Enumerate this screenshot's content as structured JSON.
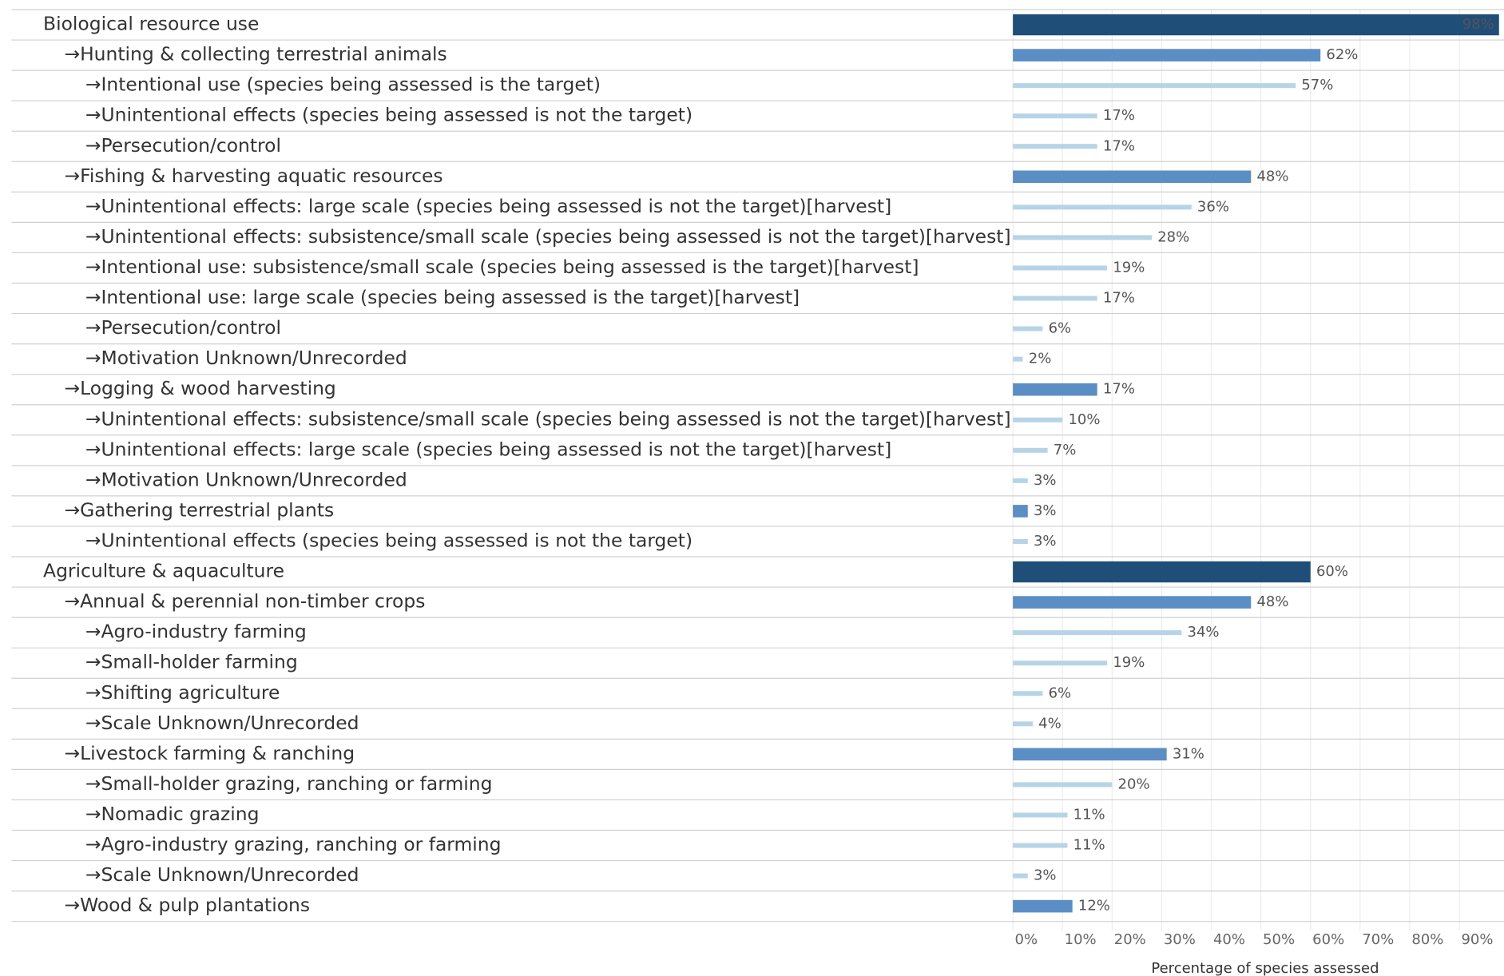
{
  "chart_data": {
    "type": "bar",
    "orientation": "horizontal",
    "x_label": "Percentage of species assessed",
    "categories": [
      "Biological resource use",
      "→Hunting & collecting terrestrial animals",
      "→Intentional use (species being assessed is the target)",
      "→Unintentional effects (species being assessed is not the target)",
      "→Persecution/control",
      "→Fishing & harvesting aquatic resources",
      "→Unintentional effects: large scale (species being assessed is not the target)[harvest]",
      "→Unintentional effects: subsistence/small scale (species being assessed is not the target)[harvest]",
      "→Intentional use: subsistence/small scale (species being assessed is the target)[harvest]",
      "→Intentional use: large scale (species being assessed is the target)[harvest]",
      "→Persecution/control",
      "→Motivation Unknown/Unrecorded",
      "→Logging & wood harvesting",
      "→Unintentional effects: subsistence/small scale (species being assessed is not the target)[harvest]",
      "→Unintentional effects: large scale (species being assessed is not the target)[harvest]",
      "→Motivation Unknown/Unrecorded",
      "→Gathering terrestrial plants",
      "→Unintentional effects (species being assessed is not the target)",
      "Agriculture & aquaculture",
      "→Annual & perennial non-timber crops",
      "→Agro-industry farming",
      "→Small-holder farming",
      "→Shifting agriculture",
      "→Scale Unknown/Unrecorded",
      "→Livestock farming & ranching",
      "→Small-holder grazing, ranching or farming",
      "→Nomadic grazing",
      "→Agro-industry grazing, ranching or farming",
      "→Scale Unknown/Unrecorded",
      "→Wood & pulp plantations"
    ],
    "levels": [
      0,
      1,
      2,
      2,
      2,
      1,
      2,
      2,
      2,
      2,
      2,
      2,
      1,
      2,
      2,
      2,
      1,
      2,
      0,
      1,
      2,
      2,
      2,
      2,
      1,
      2,
      2,
      2,
      2,
      1
    ],
    "level_colors": [
      "#1f4e79",
      "#5b8ec4",
      "#b7d4e6"
    ],
    "values": [
      98,
      62,
      57,
      17,
      17,
      48,
      36,
      28,
      19,
      17,
      6,
      2,
      17,
      10,
      7,
      3,
      3,
      3,
      60,
      48,
      34,
      19,
      6,
      4,
      31,
      20,
      11,
      11,
      3,
      12
    ],
    "value_labels": [
      "98%",
      "62%",
      "57%",
      "17%",
      "17%",
      "48%",
      "36%",
      "28%",
      "19%",
      "17%",
      "6%",
      "2%",
      "17%",
      "10%",
      "7%",
      "3%",
      "3%",
      "3%",
      "60%",
      "48%",
      "34%",
      "19%",
      "6%",
      "4%",
      "31%",
      "20%",
      "11%",
      "11%",
      "3%",
      "12%"
    ],
    "xlim": [
      0,
      99
    ],
    "xticks": [
      {
        "value": 0,
        "label": "0%"
      },
      {
        "value": 10,
        "label": "10%"
      },
      {
        "value": 20,
        "label": "20%"
      },
      {
        "value": 30,
        "label": "30%"
      },
      {
        "value": 40,
        "label": "40%"
      },
      {
        "value": 50,
        "label": "50%"
      },
      {
        "value": 60,
        "label": "60%"
      },
      {
        "value": 70,
        "label": "70%"
      },
      {
        "value": 80,
        "label": "80%"
      },
      {
        "value": 90,
        "label": "90%"
      }
    ],
    "grid": true
  }
}
